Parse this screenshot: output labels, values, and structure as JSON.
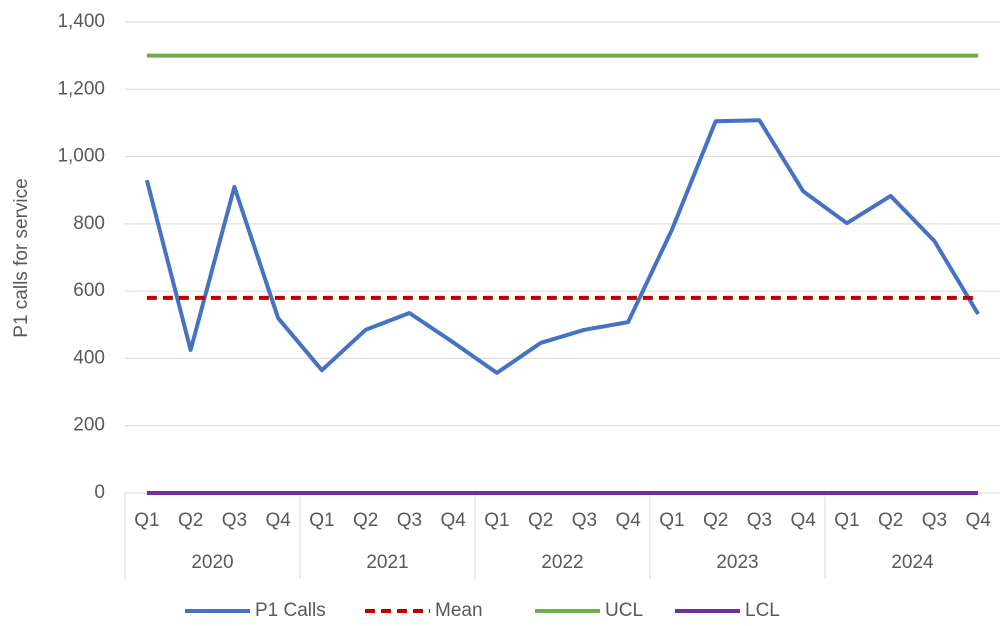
{
  "chart_data": {
    "type": "line",
    "y_label": "P1 calls for service",
    "categories": [
      "Q1",
      "Q2",
      "Q3",
      "Q4",
      "Q1",
      "Q2",
      "Q3",
      "Q4",
      "Q1",
      "Q2",
      "Q3",
      "Q4",
      "Q1",
      "Q2",
      "Q3",
      "Q4",
      "Q1",
      "Q2",
      "Q3",
      "Q4"
    ],
    "category_groups": [
      "2020",
      "2021",
      "2022",
      "2023",
      "2024"
    ],
    "series": [
      {
        "name": "P1 Calls",
        "color": "#4472c4",
        "dash": false,
        "values": [
          930,
          425,
          910,
          520,
          365,
          485,
          535,
          448,
          357,
          446,
          485,
          508,
          782,
          1105,
          1108,
          897,
          802,
          883,
          749,
          532
        ]
      },
      {
        "name": "Mean",
        "color": "#c00000",
        "dash": true,
        "values": [
          580,
          580,
          580,
          580,
          580,
          580,
          580,
          580,
          580,
          580,
          580,
          580,
          580,
          580,
          580,
          580,
          580,
          580,
          580,
          580
        ]
      },
      {
        "name": "UCL",
        "color": "#70ad47",
        "dash": false,
        "values": [
          1300,
          1300,
          1300,
          1300,
          1300,
          1300,
          1300,
          1300,
          1300,
          1300,
          1300,
          1300,
          1300,
          1300,
          1300,
          1300,
          1300,
          1300,
          1300,
          1300
        ]
      },
      {
        "name": "LCL",
        "color": "#7030a0",
        "dash": false,
        "values": [
          0,
          0,
          0,
          0,
          0,
          0,
          0,
          0,
          0,
          0,
          0,
          0,
          0,
          0,
          0,
          0,
          0,
          0,
          0,
          0
        ]
      }
    ],
    "ylim": [
      0,
      1400
    ],
    "yticks": [
      0,
      200,
      400,
      600,
      800,
      {
        "value": 1000,
        "label": "1,000"
      },
      {
        "value": 1200,
        "label": "1,200"
      },
      {
        "value": 1400,
        "label": "1,400"
      }
    ],
    "grid": true,
    "legend": "bottom"
  }
}
